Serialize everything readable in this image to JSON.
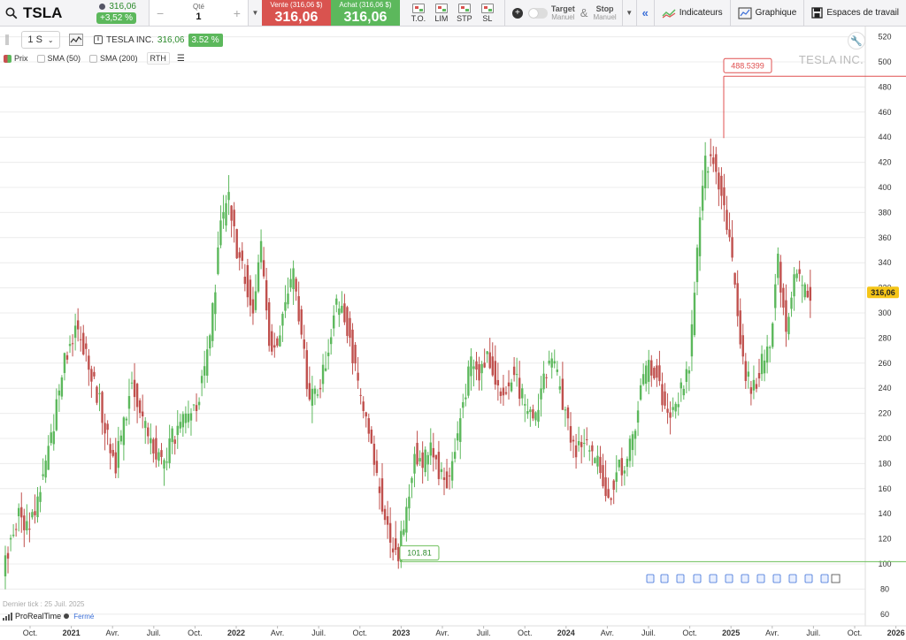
{
  "symbol": {
    "name": "TSLA",
    "price": "316,06",
    "change": "+3,52 %"
  },
  "order": {
    "qty_label": "Qté",
    "qty_value": "1",
    "minus": "−",
    "plus": "+",
    "sell_label": "Vente (316,06 $)",
    "sell_price": "316,06",
    "buy_label": "Achat (316,06 $)",
    "buy_price": "316,06",
    "types": [
      "T.O.",
      "LIM",
      "STP",
      "SL"
    ],
    "target_label": "Target",
    "target_sub": "Manuel",
    "amp": "&",
    "stop_label": "Stop",
    "stop_sub": "Manuel"
  },
  "tools": {
    "indicators": "Indicateurs",
    "graphique": "Graphique",
    "workspaces": "Espaces de travail"
  },
  "chart_toolbar": {
    "period": "1 S",
    "instrument": "TESLA INC.",
    "price": "316,06",
    "change": "3.52 %"
  },
  "legend": {
    "prix": "Prix",
    "sma50": "SMA (50)",
    "sma200": "SMA (200)",
    "rth": "RTH"
  },
  "watermark": "TESLA INC.",
  "footer": {
    "last_tick": "Dernier tick : 25 Juil. 2025",
    "platform": "ProRealTime",
    "status": "Fermé"
  },
  "colors": {
    "up": "#5cb85c",
    "down": "#c0504d",
    "high_line": "#e05050",
    "low_line": "#6cbf5a",
    "price_tag": "#f5c518"
  },
  "chart_data": {
    "type": "candlestick",
    "title": "TESLA INC.",
    "y_axis": {
      "ticks": [
        60,
        80,
        100,
        120,
        140,
        160,
        180,
        200,
        220,
        240,
        260,
        280,
        300,
        320,
        340,
        360,
        380,
        400,
        420,
        440,
        460,
        480,
        500,
        520
      ],
      "range": [
        50,
        525
      ],
      "position": "right"
    },
    "x_axis": {
      "labels": [
        "Oct.",
        "2021",
        "Avr.",
        "Juil.",
        "Oct.",
        "2022",
        "Avr.",
        "Juil.",
        "Oct.",
        "2023",
        "Avr.",
        "Juil.",
        "Oct.",
        "2024",
        "Avr.",
        "Juil.",
        "Oct.",
        "2025",
        "Avr.",
        "Juil.",
        "Oct.",
        "2026"
      ],
      "bold": [
        "2021",
        "2022",
        "2023",
        "2024",
        "2025",
        "2026"
      ]
    },
    "annotations": {
      "high": "488.5399",
      "low": "101.81",
      "last_price": "316,06"
    },
    "high_value": 488.54,
    "low_value": 101.81,
    "last_value": 316.06,
    "weekly_close": [
      95,
      120,
      140,
      130,
      145,
      170,
      200,
      240,
      270,
      290,
      270,
      250,
      230,
      200,
      180,
      210,
      250,
      220,
      200,
      190,
      180,
      200,
      210,
      220,
      230,
      250,
      300,
      370,
      390,
      350,
      330,
      300,
      350,
      280,
      270,
      310,
      330,
      280,
      230,
      240,
      260,
      300,
      310,
      280,
      240,
      210,
      180,
      150,
      120,
      110,
      140,
      190,
      180,
      200,
      175,
      165,
      190,
      230,
      260,
      250,
      270,
      250,
      230,
      250,
      240,
      215,
      220,
      250,
      260,
      240,
      210,
      190,
      200,
      185,
      175,
      150,
      175,
      180,
      200,
      240,
      260,
      250,
      225,
      220,
      240,
      260,
      350,
      420,
      420,
      400,
      360,
      300,
      250,
      240,
      260,
      280,
      340,
      290,
      330,
      320,
      316
    ],
    "weekly_swing": 28,
    "series": [
      {
        "name": "Prix",
        "type": "candles"
      }
    ]
  }
}
